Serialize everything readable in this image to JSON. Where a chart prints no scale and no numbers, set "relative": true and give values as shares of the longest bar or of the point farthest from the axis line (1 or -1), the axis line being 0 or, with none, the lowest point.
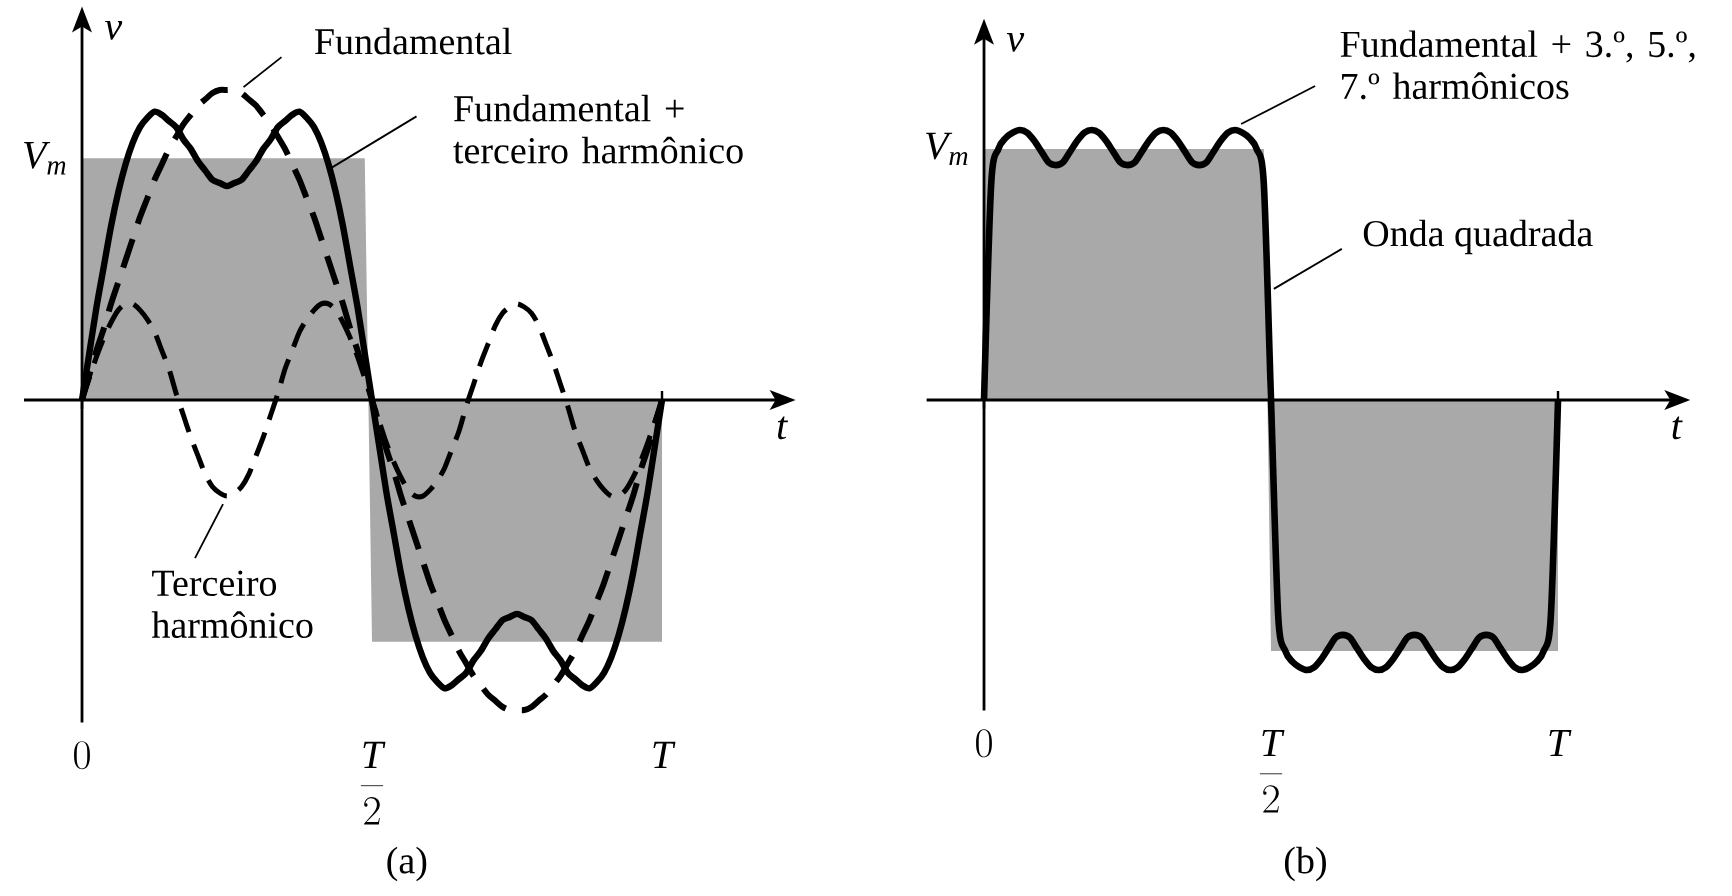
{
  "chart_data": [
    {
      "type": "line",
      "title": "(a)",
      "xlabel": "t",
      "ylabel": "v",
      "relative": true,
      "categories": [
        "0",
        null,
        null,
        null,
        null,
        null,
        null,
        null,
        null,
        null,
        null,
        null,
        null,
        null,
        null,
        null,
        null,
        null,
        null,
        null,
        null,
        null,
        null,
        null,
        null,
        null,
        null,
        null,
        null,
        null,
        null,
        null,
        null,
        null,
        null,
        null,
        null,
        null,
        null,
        null,
        "\\frac{T}{2}",
        null,
        null,
        null,
        null,
        null,
        null,
        null,
        null,
        null,
        null,
        null,
        null,
        null,
        null,
        null,
        null,
        null,
        null,
        null,
        null,
        null,
        null,
        null,
        null,
        null,
        null,
        null,
        null,
        null,
        null,
        null,
        null,
        null,
        null,
        null,
        null,
        null,
        null,
        null,
        "T"
      ],
      "annotations": [
        "V_m"
      ],
      "series": [
        {
          "type": "area",
          "color": "#a9a9a9",
          "values": [
            0.78,
            0.78,
            0.78,
            0.78,
            0.78,
            0.78,
            0.78,
            0.78,
            0.78,
            0.78,
            0.78,
            0.78,
            0.78,
            0.78,
            0.78,
            0.78,
            0.78,
            0.78,
            0.78,
            0.78,
            0.78,
            0.78,
            0.78,
            0.78,
            0.78,
            0.78,
            0.78,
            0.78,
            0.78,
            0.78,
            0.78,
            0.78,
            0.78,
            0.78,
            0.78,
            0.78,
            0.78,
            0.78,
            0.78,
            0.78,
            -0.78,
            -0.78,
            -0.78,
            -0.78,
            -0.78,
            -0.78,
            -0.78,
            -0.78,
            -0.78,
            -0.78,
            -0.78,
            -0.78,
            -0.78,
            -0.78,
            -0.78,
            -0.78,
            -0.78,
            -0.78,
            -0.78,
            -0.78,
            -0.78,
            -0.78,
            -0.78,
            -0.78,
            -0.78,
            -0.78,
            -0.78,
            -0.78,
            -0.78,
            -0.78,
            -0.78,
            -0.78,
            -0.78,
            -0.78,
            -0.78,
            -0.78,
            -0.78,
            -0.78,
            -0.78,
            -0.78,
            -0.78
          ]
        },
        {
          "name": "Fundamental",
          "color": "#000000",
          "line_style": "dashed",
          "values": [
            0,
            0.08,
            0.16,
            0.23,
            0.31,
            0.38,
            0.45,
            0.52,
            0.59,
            0.65,
            0.71,
            0.76,
            0.81,
            0.85,
            0.89,
            0.92,
            0.95,
            0.97,
            0.99,
            1.0,
            1.0,
            1.0,
            0.99,
            0.97,
            0.95,
            0.92,
            0.89,
            0.85,
            0.81,
            0.76,
            0.71,
            0.65,
            0.59,
            0.52,
            0.45,
            0.38,
            0.31,
            0.23,
            0.16,
            0.08,
            0,
            -0.08,
            -0.16,
            -0.23,
            -0.31,
            -0.38,
            -0.45,
            -0.52,
            -0.59,
            -0.65,
            -0.71,
            -0.76,
            -0.81,
            -0.85,
            -0.89,
            -0.92,
            -0.95,
            -0.97,
            -0.99,
            -1.0,
            -1.0,
            -1.0,
            -0.99,
            -0.97,
            -0.95,
            -0.92,
            -0.89,
            -0.85,
            -0.81,
            -0.76,
            -0.71,
            -0.65,
            -0.59,
            -0.52,
            -0.45,
            -0.38,
            -0.31,
            -0.23,
            -0.16,
            -0.08,
            0
          ]
        },
        {
          "name": "Fundamental + terceiro harmônico",
          "color": "#000000",
          "line_style": "solid",
          "values": [
            0,
            0.15,
            0.3,
            0.43,
            0.56,
            0.67,
            0.76,
            0.83,
            0.88,
            0.91,
            0.93,
            0.92,
            0.9,
            0.88,
            0.84,
            0.81,
            0.77,
            0.74,
            0.71,
            0.7,
            0.69,
            0.7,
            0.71,
            0.74,
            0.77,
            0.81,
            0.84,
            0.88,
            0.9,
            0.92,
            0.93,
            0.91,
            0.88,
            0.83,
            0.76,
            0.67,
            0.56,
            0.43,
            0.3,
            0.15,
            0,
            -0.15,
            -0.3,
            -0.43,
            -0.56,
            -0.67,
            -0.76,
            -0.83,
            -0.88,
            -0.91,
            -0.93,
            -0.92,
            -0.9,
            -0.88,
            -0.84,
            -0.81,
            -0.77,
            -0.74,
            -0.71,
            -0.7,
            -0.69,
            -0.7,
            -0.71,
            -0.74,
            -0.77,
            -0.81,
            -0.84,
            -0.88,
            -0.9,
            -0.92,
            -0.93,
            -0.91,
            -0.88,
            -0.83,
            -0.76,
            -0.67,
            -0.56,
            -0.43,
            -0.3,
            -0.15,
            0
          ]
        },
        {
          "name": "Terceiro harmônico",
          "color": "#000000",
          "line_style": "dashed",
          "values": [
            0,
            0.07,
            0.14,
            0.2,
            0.25,
            0.29,
            0.31,
            0.31,
            0.29,
            0.26,
            0.22,
            0.16,
            0.1,
            0.02,
            -0.05,
            -0.12,
            -0.18,
            -0.24,
            -0.28,
            -0.3,
            -0.31,
            -0.3,
            -0.28,
            -0.24,
            -0.18,
            -0.12,
            -0.05,
            0.02,
            0.1,
            0.16,
            0.22,
            0.26,
            0.29,
            0.31,
            0.31,
            0.29,
            0.25,
            0.2,
            0.14,
            0.07,
            0,
            -0.07,
            -0.14,
            -0.2,
            -0.25,
            -0.29,
            -0.31,
            -0.31,
            -0.29,
            -0.26,
            -0.22,
            -0.16,
            -0.1,
            -0.02,
            0.05,
            0.12,
            0.18,
            0.24,
            0.28,
            0.3,
            0.31,
            0.3,
            0.28,
            0.24,
            0.18,
            0.12,
            0.05,
            -0.02,
            -0.1,
            -0.16,
            -0.22,
            -0.26,
            -0.29,
            -0.31,
            -0.31,
            -0.29,
            -0.25,
            -0.2,
            -0.14,
            -0.07,
            0
          ]
        }
      ]
    },
    {
      "type": "line",
      "title": "(b)",
      "xlabel": "t",
      "ylabel": "v",
      "relative": true,
      "categories": [
        "0",
        null,
        null,
        null,
        null,
        null,
        null,
        null,
        null,
        null,
        null,
        null,
        null,
        null,
        null,
        null,
        null,
        null,
        null,
        null,
        null,
        null,
        null,
        null,
        null,
        null,
        null,
        null,
        null,
        null,
        null,
        null,
        null,
        null,
        null,
        null,
        null,
        null,
        null,
        null,
        "\\frac{T}{2}",
        null,
        null,
        null,
        null,
        null,
        null,
        null,
        null,
        null,
        null,
        null,
        null,
        null,
        null,
        null,
        null,
        null,
        null,
        null,
        null,
        null,
        null,
        null,
        null,
        null,
        null,
        null,
        null,
        null,
        null,
        null,
        null,
        null,
        null,
        null,
        null,
        null,
        null,
        null,
        "T"
      ],
      "annotations": [
        "V_m"
      ],
      "series": [
        {
          "type": "area",
          "name": "Onda quadrada",
          "color": "#a9a9a9",
          "values": [
            0.93,
            0.93,
            0.93,
            0.93,
            0.93,
            0.93,
            0.93,
            0.93,
            0.93,
            0.93,
            0.93,
            0.93,
            0.93,
            0.93,
            0.93,
            0.93,
            0.93,
            0.93,
            0.93,
            0.93,
            0.93,
            0.93,
            0.93,
            0.93,
            0.93,
            0.93,
            0.93,
            0.93,
            0.93,
            0.93,
            0.93,
            0.93,
            0.93,
            0.93,
            0.93,
            0.93,
            0.93,
            0.93,
            0.93,
            0.93,
            -0.93,
            -0.93,
            -0.93,
            -0.93,
            -0.93,
            -0.93,
            -0.93,
            -0.93,
            -0.93,
            -0.93,
            -0.93,
            -0.93,
            -0.93,
            -0.93,
            -0.93,
            -0.93,
            -0.93,
            -0.93,
            -0.93,
            -0.93,
            -0.93,
            -0.93,
            -0.93,
            -0.93,
            -0.93,
            -0.93,
            -0.93,
            -0.93,
            -0.93,
            -0.93,
            -0.93,
            -0.93,
            -0.93,
            -0.93,
            -0.93,
            -0.93,
            -0.93,
            -0.93,
            -0.93,
            -0.93,
            -0.93
          ]
        },
        {
          "name": "Fundamental + 3.º, 5.º, 7.º harmônicos",
          "color": "#000000",
          "line_style": "solid",
          "values": [
            0,
            0.8,
            0.93,
            0.97,
            0.99,
            1.0,
            0.99,
            0.96,
            0.92,
            0.88,
            0.87,
            0.88,
            0.92,
            0.96,
            0.99,
            1.0,
            0.99,
            0.96,
            0.92,
            0.88,
            0.87,
            0.88,
            0.92,
            0.96,
            0.99,
            1.0,
            0.99,
            0.96,
            0.92,
            0.88,
            0.87,
            0.88,
            0.92,
            0.96,
            0.99,
            1.0,
            0.99,
            0.97,
            0.93,
            0.8,
            0,
            -0.8,
            -0.93,
            -0.97,
            -0.99,
            -1.0,
            -0.99,
            -0.96,
            -0.92,
            -0.88,
            -0.87,
            -0.88,
            -0.92,
            -0.96,
            -0.99,
            -1.0,
            -0.99,
            -0.96,
            -0.92,
            -0.88,
            -0.87,
            -0.88,
            -0.92,
            -0.96,
            -0.99,
            -1.0,
            -0.99,
            -0.96,
            -0.92,
            -0.88,
            -0.87,
            -0.88,
            -0.92,
            -0.96,
            -0.99,
            -1.0,
            -0.99,
            -0.97,
            -0.93,
            -0.8,
            0
          ]
        }
      ]
    }
  ]
}
